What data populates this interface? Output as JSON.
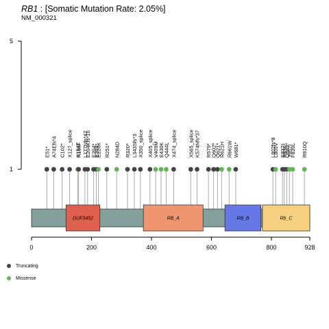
{
  "header": {
    "gene": "RB1",
    "title_rest": " : [Somatic Mutation Rate: 2.05%]",
    "transcript": "NM_000321"
  },
  "colors": {
    "truncating": "#444444",
    "missense": "#66b35c",
    "backbone": "#84a09c",
    "stem": "#aaaaaa"
  },
  "legend": [
    {
      "label": "Truncating",
      "type": "truncating"
    },
    {
      "label": "Missense",
      "type": "missense"
    }
  ],
  "chart_data": {
    "type": "lollipop",
    "protein_length": 928,
    "xlim": [
      0,
      928
    ],
    "x_ticks": [
      {
        "value": 0,
        "label": "0"
      },
      {
        "value": 200,
        "label": "200"
      },
      {
        "value": 400,
        "label": "400"
      },
      {
        "value": 600,
        "label": "600"
      },
      {
        "value": 800,
        "label": "800"
      },
      {
        "value": 928,
        "label": "928"
      }
    ],
    "y_ticks": [
      {
        "value": 1,
        "label": "1"
      },
      {
        "value": 5,
        "label": "5"
      }
    ],
    "domains": [
      {
        "name": "DUF3452",
        "start": 115,
        "end": 228,
        "color": "#e06050"
      },
      {
        "name": "RB_A",
        "start": 373,
        "end": 572,
        "color": "#ef9670"
      },
      {
        "name": "RB_B",
        "start": 645,
        "end": 765,
        "color": "#6677e6"
      },
      {
        "name": "Rb_C",
        "start": 770,
        "end": 928,
        "color": "#f4d080"
      }
    ],
    "mutations": [
      {
        "label": "E51*",
        "pos": 51,
        "count": 1,
        "type": "truncating"
      },
      {
        "label": "A74Efs*4",
        "pos": 74,
        "count": 1,
        "type": "truncating"
      },
      {
        "label": "C102*",
        "pos": 102,
        "count": 1,
        "type": "truncating"
      },
      {
        "label": "X127_splice",
        "pos": 127,
        "count": 1,
        "type": "truncating"
      },
      {
        "label": "K154T",
        "pos": 154,
        "count": 1,
        "type": "missense"
      },
      {
        "label": "R165F",
        "pos": 157,
        "count": 1,
        "type": "truncating"
      },
      {
        "label": "L177Nfs*42",
        "pos": 178,
        "count": 1,
        "type": "truncating"
      },
      {
        "label": "E204Kfs*10",
        "pos": 187,
        "count": 1,
        "type": "truncating"
      },
      {
        "label": "E204*",
        "pos": 207,
        "count": 1,
        "type": "truncating"
      },
      {
        "label": "E209*",
        "pos": 216,
        "count": 1,
        "type": "truncating"
      },
      {
        "label": "E220K",
        "pos": 223,
        "count": 1,
        "type": "missense"
      },
      {
        "label": "R251*",
        "pos": 251,
        "count": 1,
        "type": "truncating"
      },
      {
        "label": "N284D",
        "pos": 284,
        "count": 1,
        "type": "missense"
      },
      {
        "label": "R320*",
        "pos": 320,
        "count": 1,
        "type": "truncating"
      },
      {
        "label": "L343Sfs*3",
        "pos": 343,
        "count": 1,
        "type": "truncating"
      },
      {
        "label": "X350_splice",
        "pos": 363,
        "count": 1,
        "type": "truncating"
      },
      {
        "label": "X405_splice",
        "pos": 395,
        "count": 1,
        "type": "truncating"
      },
      {
        "label": "V409M",
        "pos": 414,
        "count": 1,
        "type": "missense"
      },
      {
        "label": "E430K",
        "pos": 432,
        "count": 1,
        "type": "missense"
      },
      {
        "label": "Q444L",
        "pos": 449,
        "count": 1,
        "type": "missense"
      },
      {
        "label": "X474_splice",
        "pos": 474,
        "count": 1,
        "type": "truncating"
      },
      {
        "label": "X565_splice",
        "pos": 531,
        "count": 1,
        "type": "truncating"
      },
      {
        "label": "K574Nfs*37",
        "pos": 552,
        "count": 1,
        "type": "truncating"
      },
      {
        "label": "R579*",
        "pos": 590,
        "count": 1,
        "type": "truncating"
      },
      {
        "label": "Q602*",
        "pos": 607,
        "count": 1,
        "type": "truncating"
      },
      {
        "label": "Q621*",
        "pos": 620,
        "count": 1,
        "type": "truncating"
      },
      {
        "label": "R621H",
        "pos": 634,
        "count": 1,
        "type": "missense"
      },
      {
        "label": "R661W",
        "pos": 659,
        "count": 1,
        "type": "missense"
      },
      {
        "label": "W681*",
        "pos": 681,
        "count": 1,
        "type": "truncating"
      },
      {
        "label": "L802fs*8",
        "pos": 805,
        "count": 1,
        "type": "truncating"
      },
      {
        "label": "L809V",
        "pos": 814,
        "count": 1,
        "type": "missense"
      },
      {
        "label": "E837*",
        "pos": 837,
        "count": 1,
        "type": "truncating"
      },
      {
        "label": "R836*",
        "pos": 843,
        "count": 1,
        "type": "truncating"
      },
      {
        "label": "Q849*",
        "pos": 851,
        "count": 1,
        "type": "truncating"
      },
      {
        "label": "T857I",
        "pos": 860,
        "count": 1,
        "type": "missense"
      },
      {
        "label": "F839L",
        "pos": 871,
        "count": 1,
        "type": "missense"
      },
      {
        "label": "R910Q",
        "pos": 910,
        "count": 1,
        "type": "missense"
      }
    ]
  }
}
